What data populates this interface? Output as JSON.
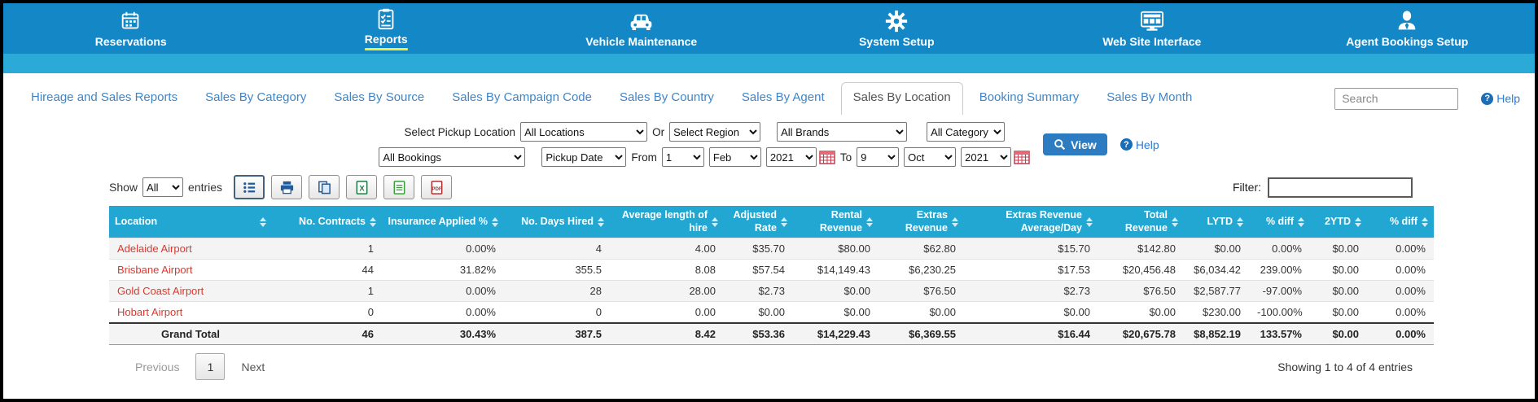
{
  "topnav": {
    "items": [
      {
        "label": "Reservations",
        "icon": "calendar-icon",
        "active": false
      },
      {
        "label": "Reports",
        "icon": "checklist-icon",
        "active": true
      },
      {
        "label": "Vehicle Maintenance",
        "icon": "car-icon",
        "active": false
      },
      {
        "label": "System Setup",
        "icon": "gear-icon",
        "active": false
      },
      {
        "label": "Web Site Interface",
        "icon": "monitor-icon",
        "active": false
      },
      {
        "label": "Agent Bookings Setup",
        "icon": "agent-icon",
        "active": false
      }
    ]
  },
  "tabs": {
    "items": [
      {
        "label": "Hireage and Sales Reports",
        "active": false
      },
      {
        "label": "Sales By Category",
        "active": false
      },
      {
        "label": "Sales By Source",
        "active": false
      },
      {
        "label": "Sales By Campaign Code",
        "active": false
      },
      {
        "label": "Sales By Country",
        "active": false
      },
      {
        "label": "Sales By Agent",
        "active": false
      },
      {
        "label": "Sales By Location",
        "active": true
      },
      {
        "label": "Booking Summary",
        "active": false
      },
      {
        "label": "Sales By Month",
        "active": false
      }
    ],
    "search_placeholder": "Search",
    "help_label": "Help"
  },
  "filters": {
    "pickup_location_label": "Select Pickup Location",
    "pickup_location_value": "All Locations",
    "or_label": "Or",
    "region_value": "Select Region",
    "brands_value": "All Brands",
    "category_value": "All Category",
    "bookings_value": "All Bookings",
    "date_type_value": "Pickup Date",
    "from_label": "From",
    "from_day": "1",
    "from_month": "Feb",
    "from_year": "2021",
    "to_label": "To",
    "to_day": "9",
    "to_month": "Oct",
    "to_year": "2021",
    "view_label": "View",
    "help_label": "Help"
  },
  "toolbar": {
    "show_label": "Show",
    "show_value": "All",
    "entries_label": "entries",
    "buttons": [
      "list",
      "print",
      "copy",
      "excel",
      "csv",
      "pdf"
    ],
    "filter_label": "Filter:",
    "filter_value": ""
  },
  "table": {
    "columns": [
      "Location",
      "No. Contracts",
      "Insurance Applied %",
      "No. Days Hired",
      "Average length of hire",
      "Adjusted Rate",
      "Rental Revenue",
      "Extras Revenue",
      "Extras Revenue Average/Day",
      "Total Revenue",
      "LYTD",
      "% diff",
      "2YTD",
      "% diff"
    ],
    "rows": [
      {
        "location": "Adelaide Airport",
        "values": [
          "1",
          "0.00%",
          "4",
          "4.00",
          "$35.70",
          "$80.00",
          "$62.80",
          "$15.70",
          "$142.80",
          "$0.00",
          "0.00%",
          "$0.00",
          "0.00%"
        ]
      },
      {
        "location": "Brisbane Airport",
        "values": [
          "44",
          "31.82%",
          "355.5",
          "8.08",
          "$57.54",
          "$14,149.43",
          "$6,230.25",
          "$17.53",
          "$20,456.48",
          "$6,034.42",
          "239.00%",
          "$0.00",
          "0.00%"
        ]
      },
      {
        "location": "Gold Coast Airport",
        "values": [
          "1",
          "0.00%",
          "28",
          "28.00",
          "$2.73",
          "$0.00",
          "$76.50",
          "$2.73",
          "$76.50",
          "$2,587.77",
          "-97.00%",
          "$0.00",
          "0.00%"
        ]
      },
      {
        "location": "Hobart Airport",
        "values": [
          "0",
          "0.00%",
          "0",
          "0.00",
          "$0.00",
          "$0.00",
          "$0.00",
          "$0.00",
          "$0.00",
          "$230.00",
          "-100.00%",
          "$0.00",
          "0.00%"
        ]
      }
    ],
    "grand_total": {
      "label": "Grand Total",
      "values": [
        "46",
        "30.43%",
        "387.5",
        "8.42",
        "$53.36",
        "$14,229.43",
        "$6,369.55",
        "$16.44",
        "$20,675.78",
        "$8,852.19",
        "133.57%",
        "$0.00",
        "0.00%"
      ]
    }
  },
  "pagination": {
    "previous": "Previous",
    "page": "1",
    "next": "Next",
    "info": "Showing 1 to 4 of 4 entries"
  },
  "colors": {
    "topnav_bg": "#1487c6",
    "subbar_bg": "#2baad8",
    "table_header_bg": "#22a7d2",
    "tab_link": "#4285c4",
    "active_underline": "#f3ea43",
    "location_link": "#e0372c",
    "view_button_bg": "#2d7cc1",
    "grand_total_bg": "#d9e1eb"
  }
}
